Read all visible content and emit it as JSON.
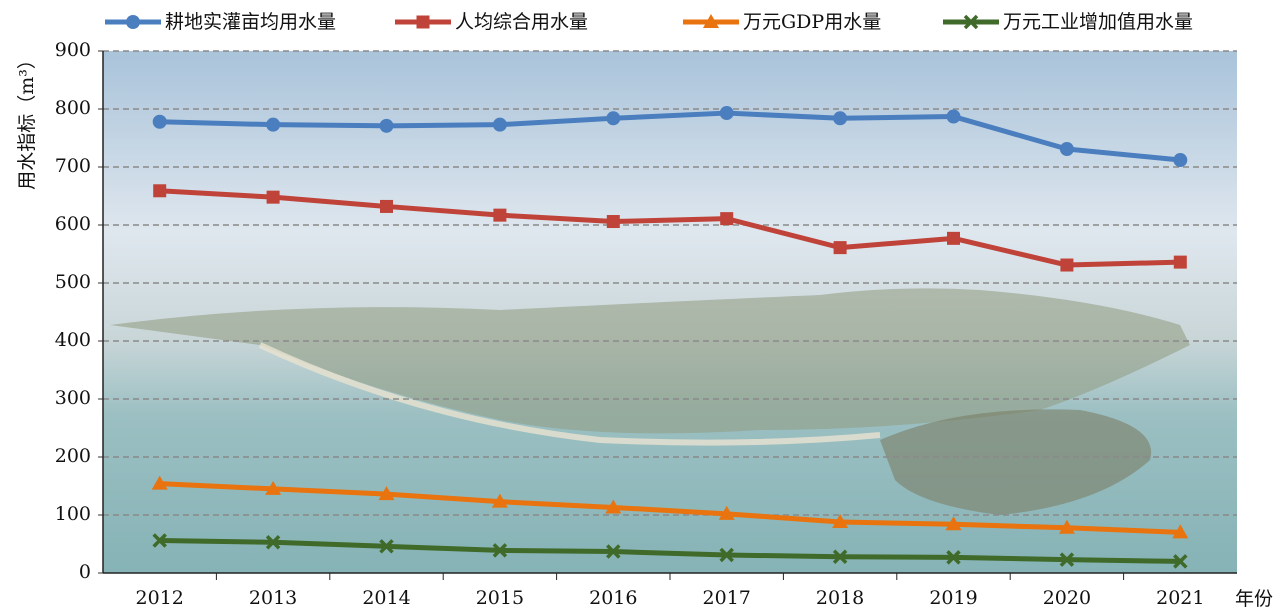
{
  "chart_data": {
    "type": "line",
    "categories": [
      "2012",
      "2013",
      "2014",
      "2015",
      "2016",
      "2017",
      "2018",
      "2019",
      "2020",
      "2021"
    ],
    "series": [
      {
        "name": "耕地实灌亩均用水量",
        "color": "#4a7ebf",
        "marker": "circle",
        "values": [
          778,
          773,
          771,
          773,
          784,
          793,
          784,
          787,
          731,
          712
        ]
      },
      {
        "name": "人均综合用水量",
        "color": "#c0433a",
        "marker": "square",
        "values": [
          659,
          648,
          632,
          617,
          606,
          611,
          561,
          577,
          531,
          536
        ]
      },
      {
        "name": "万元GDP用水量",
        "color": "#e8730f",
        "marker": "triangle",
        "values": [
          154,
          145,
          136,
          123,
          113,
          102,
          88,
          84,
          78,
          70
        ]
      },
      {
        "name": "万元工业增加值用水量",
        "color": "#3f6a2a",
        "marker": "x",
        "values": [
          56,
          53,
          46,
          39,
          37,
          31,
          28,
          27,
          23,
          20
        ]
      }
    ],
    "ylabel": "用水指标（m³）",
    "xlabel": "年份",
    "ylim": [
      0,
      900
    ],
    "yticks": [
      0,
      100,
      200,
      300,
      400,
      500,
      600,
      700,
      800,
      900
    ],
    "grid": true,
    "legend": "top"
  }
}
